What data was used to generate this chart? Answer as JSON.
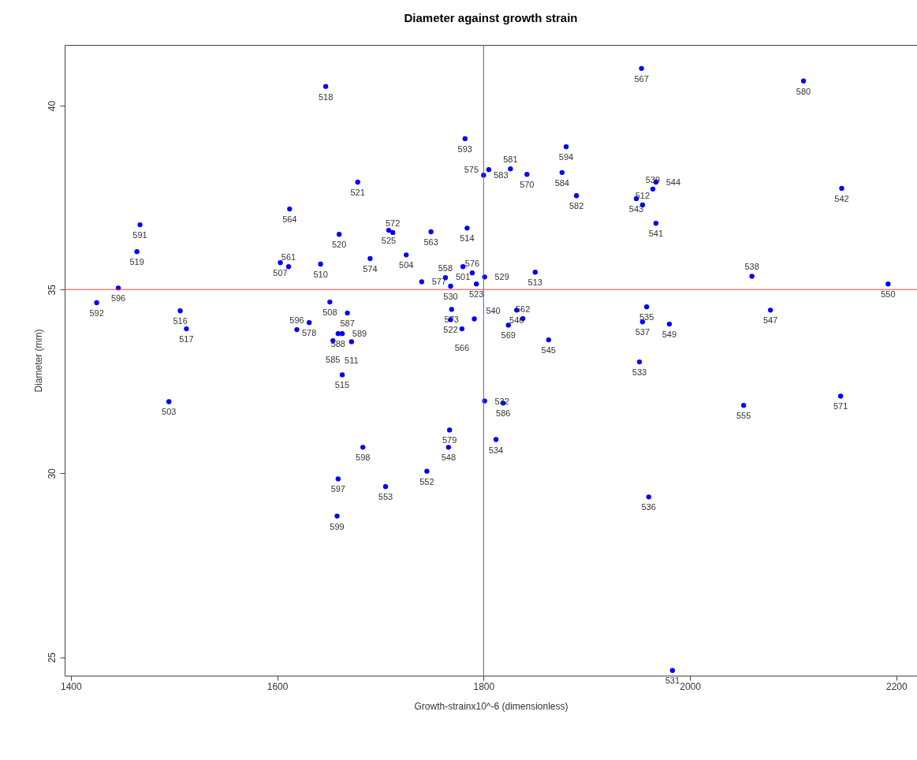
{
  "chart_data": {
    "type": "scatter",
    "title": "Diameter against growth strain",
    "xlabel": "Growth-strainx10^-6 (dimensionless)",
    "ylabel": "Diameter (mm)",
    "xlim": [
      1394,
      2220
    ],
    "ylim": [
      24.5,
      41.65
    ],
    "xticks": [
      1400,
      1600,
      1800,
      2000,
      2200
    ],
    "yticks": [
      25,
      30,
      35,
      40
    ],
    "grid": false,
    "marker": "circle",
    "x": [
      1425,
      1446,
      1464,
      1467,
      1506,
      1512,
      1495,
      1612,
      1603,
      1611,
      1642,
      1647,
      1660,
      1678,
      1690,
      1708,
      1712,
      1725,
      1749,
      1740,
      1784,
      1782,
      1800,
      1805,
      1826,
      1842,
      1876,
      1880,
      1890,
      1953,
      2110,
      2147,
      1948,
      1954,
      1964,
      1967,
      1967,
      1850,
      2060,
      2192,
      2078,
      1958,
      1954,
      1980,
      1832,
      1838,
      1824,
      1863,
      1951,
      2052,
      2146,
      1960,
      1983,
      1801,
      1819,
      1812,
      1767,
      1766,
      1745,
      1705,
      1683,
      1659,
      1658,
      1663,
      1651,
      1668,
      1631,
      1619,
      1659,
      1663,
      1654,
      1672,
      1780,
      1789,
      1763,
      1801,
      1768,
      1793,
      1769,
      1768,
      1779,
      1791
    ],
    "ref_lines": [
      {
        "axis": "y",
        "value": 35,
        "color": "#ff4040"
      },
      {
        "axis": "x",
        "value": 1800,
        "color": "#5050ff"
      }
    ],
    "series": [
      {
        "color": "#0000ff",
        "values": [
          34.64,
          35.04,
          36.03,
          36.76,
          34.42,
          33.93,
          31.95,
          37.19,
          35.73,
          35.62,
          35.69,
          40.52,
          36.5,
          37.92,
          35.84,
          36.61,
          36.55,
          35.94,
          36.57,
          35.21,
          36.67,
          39.1,
          38.11,
          38.26,
          38.28,
          38.13,
          38.18,
          38.88,
          37.55,
          41.01,
          40.67,
          37.75,
          37.47,
          37.3,
          37.73,
          37.92,
          36.8,
          35.47,
          35.36,
          35.15,
          34.44,
          34.53,
          34.12,
          34.06,
          34.44,
          34.21,
          34.03,
          33.63,
          33.03,
          31.85,
          32.1,
          29.36,
          24.64,
          31.97,
          31.91,
          30.92,
          31.18,
          30.71,
          30.06,
          29.64,
          30.71,
          29.85,
          28.84,
          32.68,
          34.66,
          34.36,
          34.1,
          33.91,
          33.8,
          33.8,
          33.61,
          33.58,
          35.62,
          35.45,
          35.32,
          35.34,
          35.09,
          35.15,
          34.46,
          34.18,
          33.93,
          34.2
        ]
      }
    ],
    "annotations": [
      {
        "text": "592",
        "x": 1425,
        "y": 34.64
      },
      {
        "text": "596",
        "x": 1446,
        "y": 35.04
      },
      {
        "text": "519",
        "x": 1464,
        "y": 36.03
      },
      {
        "text": "591",
        "x": 1467,
        "y": 36.76
      },
      {
        "text": "516",
        "x": 1506,
        "y": 34.42
      },
      {
        "text": "517",
        "x": 1512,
        "y": 33.93
      },
      {
        "text": "503",
        "x": 1495,
        "y": 31.95
      },
      {
        "text": "564",
        "x": 1612,
        "y": 37.19
      },
      {
        "text": "507",
        "x": 1603,
        "y": 35.73
      },
      {
        "text": "561",
        "x": 1611,
        "y": 35.62
      },
      {
        "text": "510",
        "x": 1642,
        "y": 35.69
      },
      {
        "text": "518",
        "x": 1647,
        "y": 40.52
      },
      {
        "text": "520",
        "x": 1660,
        "y": 36.5
      },
      {
        "text": "521",
        "x": 1678,
        "y": 37.92
      },
      {
        "text": "574",
        "x": 1690,
        "y": 35.84
      },
      {
        "text": "525",
        "x": 1708,
        "y": 36.61
      },
      {
        "text": "572",
        "x": 1712,
        "y": 36.55
      },
      {
        "text": "504",
        "x": 1725,
        "y": 35.94
      },
      {
        "text": "563",
        "x": 1749,
        "y": 36.57
      },
      {
        "text": "577",
        "x": 1740,
        "y": 35.21
      },
      {
        "text": "514",
        "x": 1784,
        "y": 36.67
      },
      {
        "text": "593",
        "x": 1782,
        "y": 39.1
      },
      {
        "text": "583",
        "x": 1800,
        "y": 38.11
      },
      {
        "text": "575",
        "x": 1805,
        "y": 38.26
      },
      {
        "text": "581",
        "x": 1826,
        "y": 38.28
      },
      {
        "text": "570",
        "x": 1842,
        "y": 38.13
      },
      {
        "text": "584",
        "x": 1876,
        "y": 38.18
      },
      {
        "text": "594",
        "x": 1880,
        "y": 38.88
      },
      {
        "text": "582",
        "x": 1890,
        "y": 37.55
      },
      {
        "text": "567",
        "x": 1953,
        "y": 41.01
      },
      {
        "text": "580",
        "x": 2110,
        "y": 40.67
      },
      {
        "text": "542",
        "x": 2147,
        "y": 37.75
      },
      {
        "text": "543",
        "x": 1948,
        "y": 37.47
      },
      {
        "text": "512",
        "x": 1954,
        "y": 37.3
      },
      {
        "text": "539",
        "x": 1964,
        "y": 37.73
      },
      {
        "text": "544",
        "x": 1967,
        "y": 37.92
      },
      {
        "text": "541",
        "x": 1967,
        "y": 36.8
      },
      {
        "text": "513",
        "x": 1850,
        "y": 35.47
      },
      {
        "text": "538",
        "x": 2060,
        "y": 35.36
      },
      {
        "text": "550",
        "x": 2192,
        "y": 35.15
      },
      {
        "text": "547",
        "x": 2078,
        "y": 34.44
      },
      {
        "text": "535",
        "x": 1958,
        "y": 34.53
      },
      {
        "text": "537",
        "x": 1954,
        "y": 34.12
      },
      {
        "text": "549",
        "x": 1980,
        "y": 34.06
      },
      {
        "text": "546",
        "x": 1832,
        "y": 34.44
      },
      {
        "text": "562",
        "x": 1838,
        "y": 34.21
      },
      {
        "text": "569",
        "x": 1824,
        "y": 34.03
      },
      {
        "text": "545",
        "x": 1863,
        "y": 33.63
      },
      {
        "text": "533",
        "x": 1951,
        "y": 33.03
      },
      {
        "text": "555",
        "x": 2052,
        "y": 31.85
      },
      {
        "text": "571",
        "x": 2146,
        "y": 32.1
      },
      {
        "text": "536",
        "x": 1960,
        "y": 29.36
      },
      {
        "text": "531",
        "x": 1983,
        "y": 24.64
      },
      {
        "text": "532",
        "x": 1801,
        "y": 31.97
      },
      {
        "text": "586",
        "x": 1819,
        "y": 31.91
      },
      {
        "text": "534",
        "x": 1812,
        "y": 30.92
      },
      {
        "text": "579",
        "x": 1767,
        "y": 31.18
      },
      {
        "text": "548",
        "x": 1766,
        "y": 30.71
      },
      {
        "text": "552",
        "x": 1745,
        "y": 30.06
      },
      {
        "text": "553",
        "x": 1705,
        "y": 29.64
      },
      {
        "text": "598",
        "x": 1683,
        "y": 30.71
      },
      {
        "text": "597",
        "x": 1659,
        "y": 29.85
      },
      {
        "text": "599",
        "x": 1658,
        "y": 28.84
      },
      {
        "text": "515",
        "x": 1663,
        "y": 32.68
      },
      {
        "text": "508",
        "x": 1651,
        "y": 34.66
      },
      {
        "text": "587",
        "x": 1668,
        "y": 34.36
      },
      {
        "text": "578",
        "x": 1631,
        "y": 34.1
      },
      {
        "text": "596",
        "x": 1619,
        "y": 33.91
      },
      {
        "text": "588",
        "x": 1659,
        "y": 33.8
      },
      {
        "text": "589",
        "x": 1663,
        "y": 33.8
      },
      {
        "text": "585",
        "x": 1654,
        "y": 33.61
      },
      {
        "text": "511",
        "x": 1672,
        "y": 33.58
      },
      {
        "text": "501",
        "x": 1780,
        "y": 35.62
      },
      {
        "text": "576",
        "x": 1789,
        "y": 35.45
      },
      {
        "text": "558",
        "x": 1763,
        "y": 35.32
      },
      {
        "text": "529",
        "x": 1801,
        "y": 35.34
      },
      {
        "text": "530",
        "x": 1768,
        "y": 35.09
      },
      {
        "text": "523",
        "x": 1793,
        "y": 35.15
      },
      {
        "text": "573",
        "x": 1769,
        "y": 34.46
      },
      {
        "text": "522",
        "x": 1768,
        "y": 34.18
      },
      {
        "text": "566",
        "x": 1779,
        "y": 33.93
      },
      {
        "text": "540",
        "x": 1791,
        "y": 34.2
      }
    ]
  }
}
